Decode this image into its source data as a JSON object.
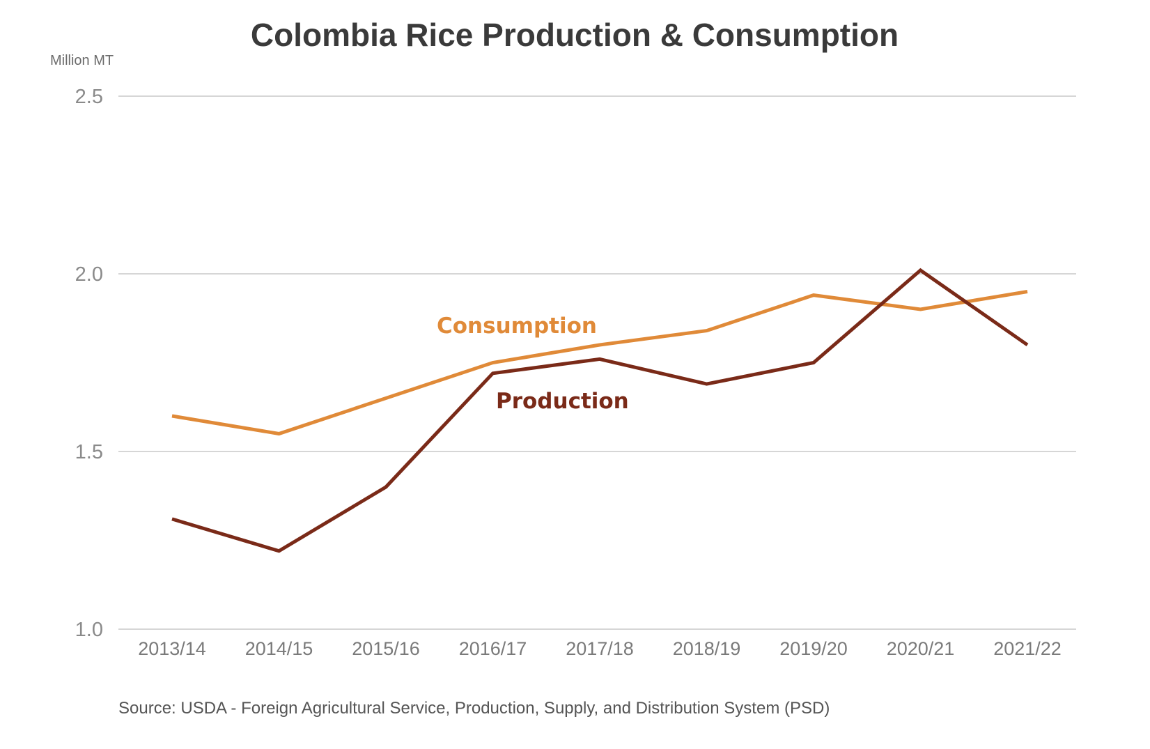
{
  "chart_data": {
    "type": "line",
    "title": "Colombia Rice Production & Consumption",
    "ylabel": "Million MT",
    "xlabel": "",
    "ylim": [
      1.0,
      2.5
    ],
    "yticks": [
      "1.0",
      "1.5",
      "2.0",
      "2.5"
    ],
    "categories": [
      "2013/14",
      "2014/15",
      "2015/16",
      "2016/17",
      "2017/18",
      "2018/19",
      "2019/20",
      "2020/21",
      "2021/22"
    ],
    "series": [
      {
        "name": "Consumption",
        "color": "#e08a38",
        "values": [
          1.6,
          1.55,
          1.65,
          1.75,
          1.8,
          1.84,
          1.94,
          1.9,
          1.95
        ]
      },
      {
        "name": "Production",
        "color": "#7a2a18",
        "values": [
          1.31,
          1.22,
          1.4,
          1.72,
          1.76,
          1.69,
          1.75,
          2.01,
          1.8
        ]
      }
    ],
    "grid": true,
    "legend": "inline labels near lines",
    "source": "Source: USDA - Foreign Agricultural Service, Production, Supply, and Distribution System (PSD)"
  }
}
